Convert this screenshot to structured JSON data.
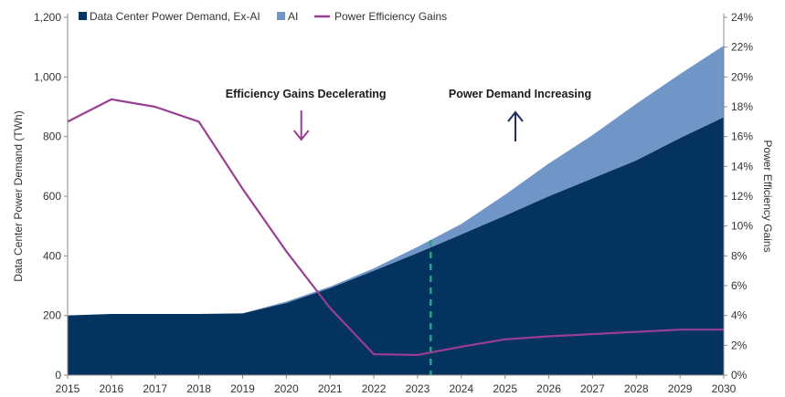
{
  "chart_data": {
    "type": "area",
    "x": [
      2015,
      2016,
      2017,
      2018,
      2019,
      2020,
      2021,
      2022,
      2023,
      2024,
      2025,
      2026,
      2027,
      2028,
      2029,
      2030
    ],
    "x_tick_labels": [
      "2015",
      "2016",
      "2017",
      "2018",
      "2019",
      "2020",
      "2021",
      "2022",
      "2023",
      "2024",
      "2025",
      "2026",
      "2027",
      "2028",
      "2029",
      "2030"
    ],
    "series": [
      {
        "name": "Data Center Power Demand, Ex-AI",
        "type": "area",
        "axis": "left",
        "color": "#03335e",
        "values": [
          200,
          205,
          205,
          205,
          207,
          242,
          292,
          350,
          410,
          472,
          535,
          600,
          660,
          720,
          795,
          865
        ]
      },
      {
        "name": "AI",
        "type": "stacked-area",
        "axis": "left",
        "color": "#6f96c7",
        "values": [
          0,
          0,
          0,
          0,
          0,
          5,
          5,
          8,
          20,
          35,
          70,
          110,
          145,
          190,
          215,
          240
        ]
      },
      {
        "name": "Power Efficiency Gains",
        "type": "line",
        "axis": "right",
        "unit": "%",
        "color": "#993f93",
        "values": [
          17.0,
          18.5,
          18.0,
          17.0,
          12.5,
          8.3,
          4.5,
          1.4,
          1.35,
          1.9,
          2.4,
          2.6,
          2.75,
          2.9,
          3.05,
          3.05
        ]
      }
    ],
    "ylabel": "Data Center Power Demand (TWh)",
    "ylim": [
      0,
      1200
    ],
    "y_ticks": [
      "0",
      "200",
      "400",
      "600",
      "800",
      "1,000",
      "1,200"
    ],
    "y2label": "Power Efficiency Gains",
    "y2lim": [
      0,
      24
    ],
    "y2_ticks": [
      "0%",
      "2%",
      "4%",
      "6%",
      "8%",
      "10%",
      "12%",
      "14%",
      "16%",
      "18%",
      "20%",
      "22%",
      "24%"
    ],
    "vertical_marker": {
      "x": 2023.3,
      "style": "dashed",
      "color": "#2f9c8e"
    },
    "annotations": [
      {
        "text": "Efficiency Gains Decelerating",
        "at_x": 2020.3,
        "arrow": "down",
        "arrow_color": "#9a3d92"
      },
      {
        "text": "Power Demand Increasing",
        "at_x": 2025.3,
        "arrow": "up",
        "arrow_color": "#1f2d5c"
      }
    ],
    "legend": {
      "placement": "top-left",
      "entries": [
        "Data Center Power Demand, Ex-AI",
        "AI",
        "Power Efficiency Gains"
      ]
    },
    "grid": false
  }
}
